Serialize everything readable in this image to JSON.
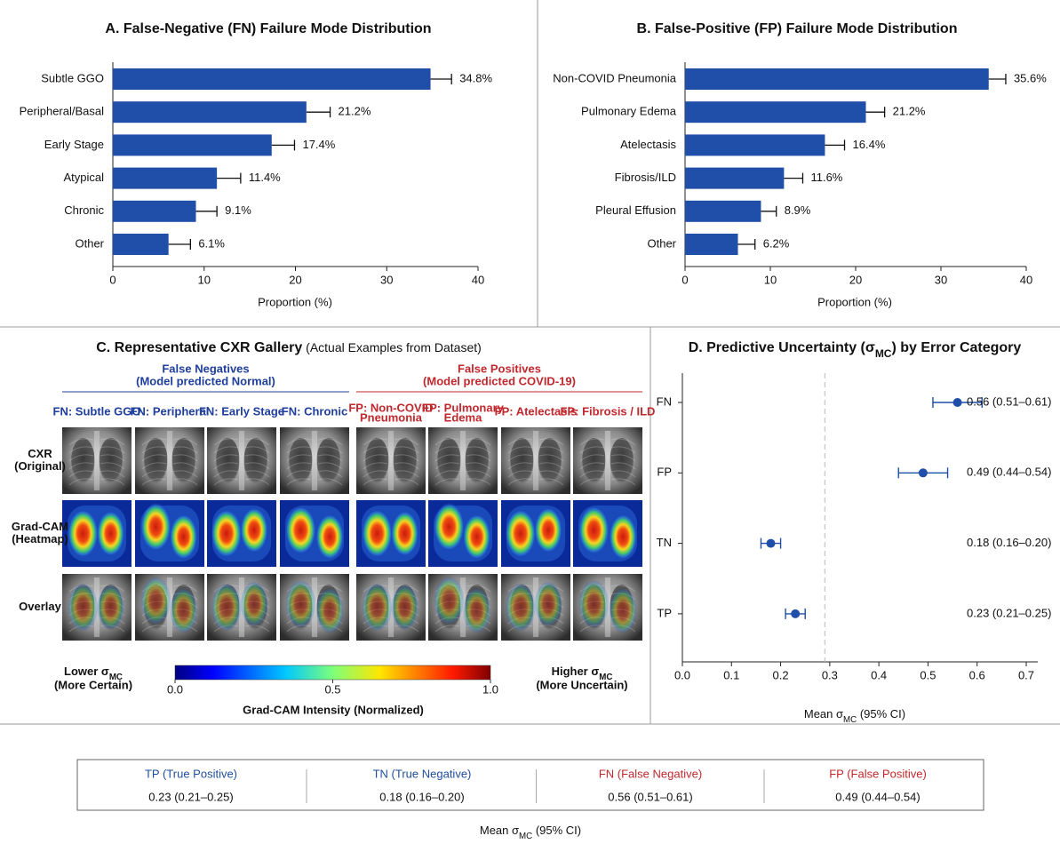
{
  "chart_data": [
    {
      "type": "hbar",
      "title": "A. False-Negative (FN) Failure Mode Distribution",
      "categories": [
        "Subtle GGO",
        "Peripheral/Basal",
        "Early Stage",
        "Atypical",
        "Chronic",
        "Other"
      ],
      "values": [
        34.8,
        21.2,
        17.4,
        11.4,
        9.1,
        6.1
      ],
      "value_labels": [
        "34.8%",
        "21.2%",
        "17.4%",
        "11.4%",
        "9.1%",
        "6.1%"
      ],
      "errors": [
        2.3,
        2.6,
        2.5,
        2.6,
        2.3,
        2.4
      ],
      "color": "#1f4fa8",
      "xlim": [
        0,
        40
      ],
      "xticks": [
        0,
        10,
        20,
        30,
        40
      ],
      "xlabel": "Proportion (%)"
    },
    {
      "type": "hbar",
      "title": "B. False-Positive (FP) Failure Mode Distribution",
      "categories": [
        "Non-COVID Pneumonia",
        "Pulmonary Edema",
        "Atelectasis",
        "Fibrosis/ILD",
        "Pleural Effusion",
        "Other"
      ],
      "values": [
        35.6,
        21.2,
        16.4,
        11.6,
        8.9,
        6.2
      ],
      "value_labels": [
        "35.6%",
        "21.2%",
        "16.4%",
        "11.6%",
        "8.9%",
        "6.2%"
      ],
      "errors": [
        2.0,
        2.2,
        2.3,
        2.2,
        1.8,
        2.0
      ],
      "color": "#1f4fa8",
      "xlim": [
        0,
        40
      ],
      "xticks": [
        0,
        10,
        20,
        30,
        40
      ],
      "xlabel": "Proportion (%)"
    },
    {
      "type": "errordot",
      "title": [
        "D. Predictive Uncertainty (σ",
        "MC",
        ") by Error Category"
      ],
      "categories": [
        "FN",
        "FP",
        "TN",
        "TP"
      ],
      "values": [
        0.56,
        0.49,
        0.18,
        0.23
      ],
      "ci_low": [
        0.51,
        0.44,
        0.16,
        0.21
      ],
      "ci_high": [
        0.61,
        0.54,
        0.2,
        0.25
      ],
      "value_labels": [
        "0.56 (0.51–0.61)",
        "0.49 (0.44–0.54)",
        "0.18 (0.16–0.20)",
        "0.23 (0.21–0.25)"
      ],
      "color": "#1f4fa8",
      "vline": 0.29,
      "xlim": [
        0,
        0.7
      ],
      "xticks": [
        {
          "value": 0,
          "label": "0.0"
        },
        {
          "value": 0.1,
          "label": "0.1"
        },
        {
          "value": 0.2,
          "label": "0.2"
        },
        {
          "value": 0.3,
          "label": "0.3"
        },
        {
          "value": 0.4,
          "label": "0.4"
        },
        {
          "value": 0.5,
          "label": "0.5"
        },
        {
          "value": 0.6,
          "label": "0.6"
        },
        {
          "value": 0.7,
          "label": "0.7"
        }
      ],
      "xlabel": [
        "Mean σ",
        "MC",
        " (95% CI)"
      ]
    }
  ],
  "gallery": {
    "title": "C. Representative CXR Gallery",
    "subtitle": " (Actual Examples from Dataset)",
    "groups": [
      {
        "title": "False Negatives",
        "subtitle": "(Model predicted Normal)",
        "color": "#1f3f9c",
        "columns": [
          [
            "FN: Subtle GGO"
          ],
          [
            "FN: Peripheral"
          ],
          [
            "FN: Early Stage"
          ],
          [
            "FN: Chronic"
          ]
        ]
      },
      {
        "title": "False Positives",
        "subtitle": "(Model predicted COVID-19)",
        "color": "#c0282d",
        "columns": [
          [
            "FP: Non-COVID",
            "Pneumonia"
          ],
          [
            "FP: Pulmonary",
            "Edema"
          ],
          [
            "FP: Atelectasis"
          ],
          [
            "FP: Fibrosis / ILD"
          ]
        ]
      }
    ],
    "rows": [
      [
        "CXR",
        "(Original)"
      ],
      [
        "Grad-CAM",
        "(Heatmap)"
      ],
      [
        "Overlay"
      ]
    ],
    "colorbar": {
      "ticks": [
        {
          "value": 0,
          "label": "0.0"
        },
        {
          "value": 0.5,
          "label": "0.5"
        },
        {
          "value": 1,
          "label": "1.0"
        }
      ],
      "range": [
        0,
        1
      ],
      "label": "Grad-CAM Intensity (Normalized)"
    },
    "left_note": {
      "parts": [
        "Lower σ",
        "MC"
      ],
      "line2": "(More Certain)"
    },
    "right_note": {
      "parts": [
        "Higher σ",
        "MC"
      ],
      "line2": "(More Uncertain)"
    }
  },
  "summary": {
    "cells": [
      {
        "label": "TP (True Positive)",
        "value": "0.23 (0.21–0.25)",
        "color": "#1f4e9c"
      },
      {
        "label": "TN (True Negative)",
        "value": "0.18 (0.16–0.20)",
        "color": "#1f4e9c"
      },
      {
        "label": "FN (False Negative)",
        "value": "0.56 (0.51–0.61)",
        "color": "#c0282d"
      },
      {
        "label": "FP (False Positive)",
        "value": "0.49 (0.44–0.54)",
        "color": "#c0282d"
      }
    ],
    "caption": [
      "Mean σ",
      "MC",
      " (95% CI)"
    ]
  }
}
